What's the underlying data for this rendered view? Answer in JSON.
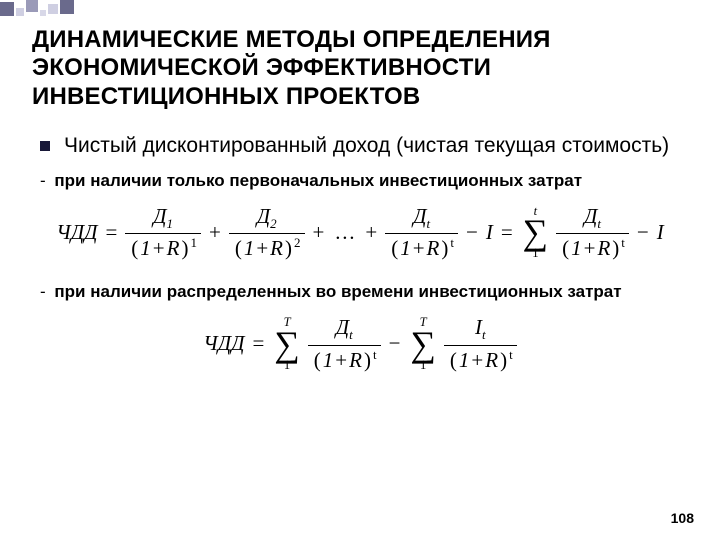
{
  "decor": {
    "squares": [
      {
        "w": 14,
        "h": 14,
        "bg": "#6a6a8c",
        "mt": 2,
        "ml": 0
      },
      {
        "w": 8,
        "h": 8,
        "bg": "#cfcfe2",
        "mt": 8,
        "ml": 2
      },
      {
        "w": 12,
        "h": 12,
        "bg": "#9a9ab8",
        "mt": 0,
        "ml": 2
      },
      {
        "w": 6,
        "h": 6,
        "bg": "#d8d8e8",
        "mt": 10,
        "ml": 2
      },
      {
        "w": 10,
        "h": 10,
        "bg": "#cfcfe2",
        "mt": 4,
        "ml": 2
      },
      {
        "w": 14,
        "h": 14,
        "bg": "#6a6a8c",
        "mt": 0,
        "ml": 2
      }
    ]
  },
  "title": "ДИНАМИЧЕСКИЕ МЕТОДЫ ОПРЕДЕЛЕНИЯ ЭКОНОМИЧЕСКОЙ ЭФФЕКТИВНОСТИ ИНВЕСТИЦИОННЫХ ПРОЕКТОВ",
  "bullet": "Чистый дисконтированный доход (чистая текущая стоимость)",
  "sub1": "при наличии только первоначальных инвестиционных затрат",
  "sub2": "при наличии распределенных во времени инвестиционных затрат",
  "math": {
    "lhs": "ЧДД",
    "D": "Д",
    "I": "I",
    "R": "R",
    "t": "t",
    "T": "T",
    "one": "1",
    "two": "2",
    "dots": "…",
    "eq": "=",
    "plus": "+",
    "minus": "−",
    "sigma": "∑",
    "lp": "(",
    "rp": ")"
  },
  "page": "108"
}
